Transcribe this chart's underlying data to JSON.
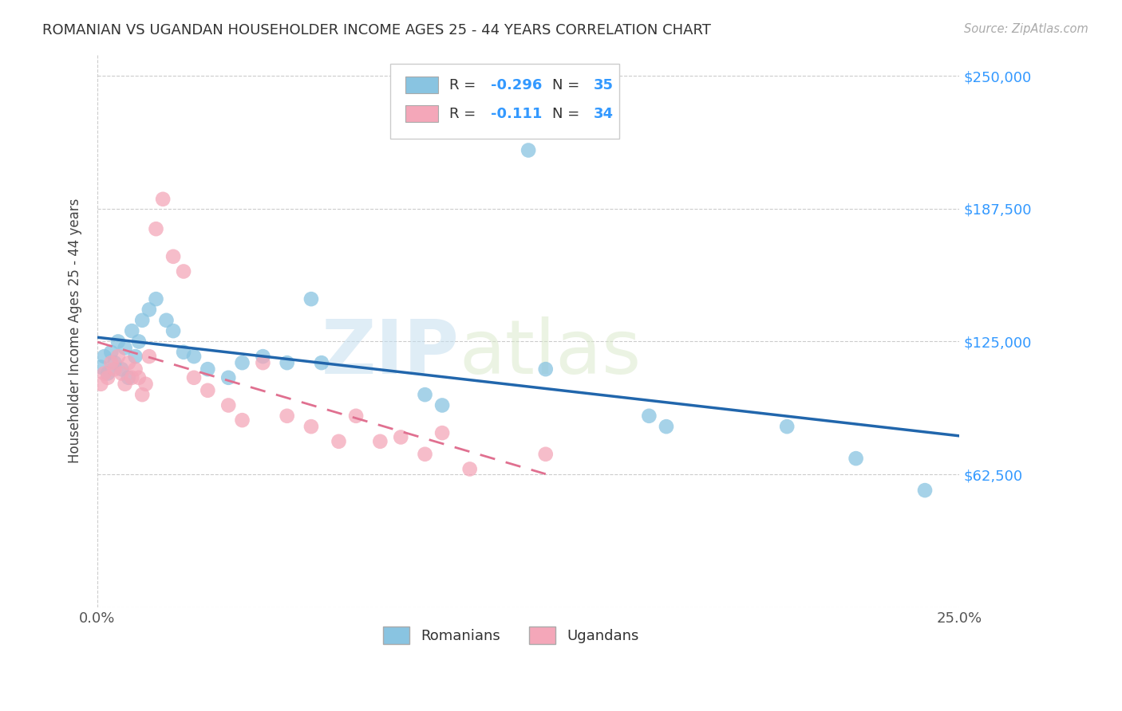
{
  "title": "ROMANIAN VS UGANDAN HOUSEHOLDER INCOME AGES 25 - 44 YEARS CORRELATION CHART",
  "source": "Source: ZipAtlas.com",
  "ylabel": "Householder Income Ages 25 - 44 years",
  "yticks": [
    0,
    62500,
    125000,
    187500,
    250000
  ],
  "xlim": [
    0.0,
    0.25
  ],
  "ylim": [
    0,
    260000
  ],
  "watermark_zip": "ZIP",
  "watermark_atlas": "atlas",
  "legend_r_blue": "-0.296",
  "legend_n_blue": "35",
  "legend_r_pink": "-0.111",
  "legend_n_pink": "34",
  "blue_color": "#89c4e1",
  "pink_color": "#f4a7b9",
  "trend_blue_color": "#2166ac",
  "trend_pink_color": "#e07090",
  "blue_x": [
    0.001,
    0.002,
    0.003,
    0.004,
    0.005,
    0.006,
    0.007,
    0.008,
    0.009,
    0.01,
    0.011,
    0.012,
    0.013,
    0.015,
    0.017,
    0.02,
    0.022,
    0.025,
    0.028,
    0.032,
    0.038,
    0.042,
    0.048,
    0.055,
    0.062,
    0.065,
    0.095,
    0.1,
    0.125,
    0.13,
    0.16,
    0.165,
    0.2,
    0.22,
    0.24
  ],
  "blue_y": [
    113000,
    118000,
    110000,
    120000,
    115000,
    125000,
    112000,
    122000,
    108000,
    130000,
    118000,
    125000,
    135000,
    140000,
    145000,
    135000,
    130000,
    120000,
    118000,
    112000,
    108000,
    115000,
    118000,
    115000,
    145000,
    115000,
    100000,
    95000,
    215000,
    112000,
    90000,
    85000,
    85000,
    70000,
    55000
  ],
  "pink_x": [
    0.001,
    0.002,
    0.003,
    0.004,
    0.005,
    0.006,
    0.007,
    0.008,
    0.009,
    0.01,
    0.011,
    0.012,
    0.013,
    0.014,
    0.015,
    0.017,
    0.019,
    0.022,
    0.025,
    0.028,
    0.032,
    0.038,
    0.042,
    0.048,
    0.055,
    0.062,
    0.07,
    0.075,
    0.082,
    0.088,
    0.095,
    0.1,
    0.108,
    0.13
  ],
  "pink_y": [
    105000,
    110000,
    108000,
    115000,
    112000,
    118000,
    110000,
    105000,
    115000,
    108000,
    112000,
    108000,
    100000,
    105000,
    118000,
    178000,
    192000,
    165000,
    158000,
    108000,
    102000,
    95000,
    88000,
    115000,
    90000,
    85000,
    78000,
    90000,
    78000,
    80000,
    72000,
    82000,
    65000,
    72000
  ]
}
